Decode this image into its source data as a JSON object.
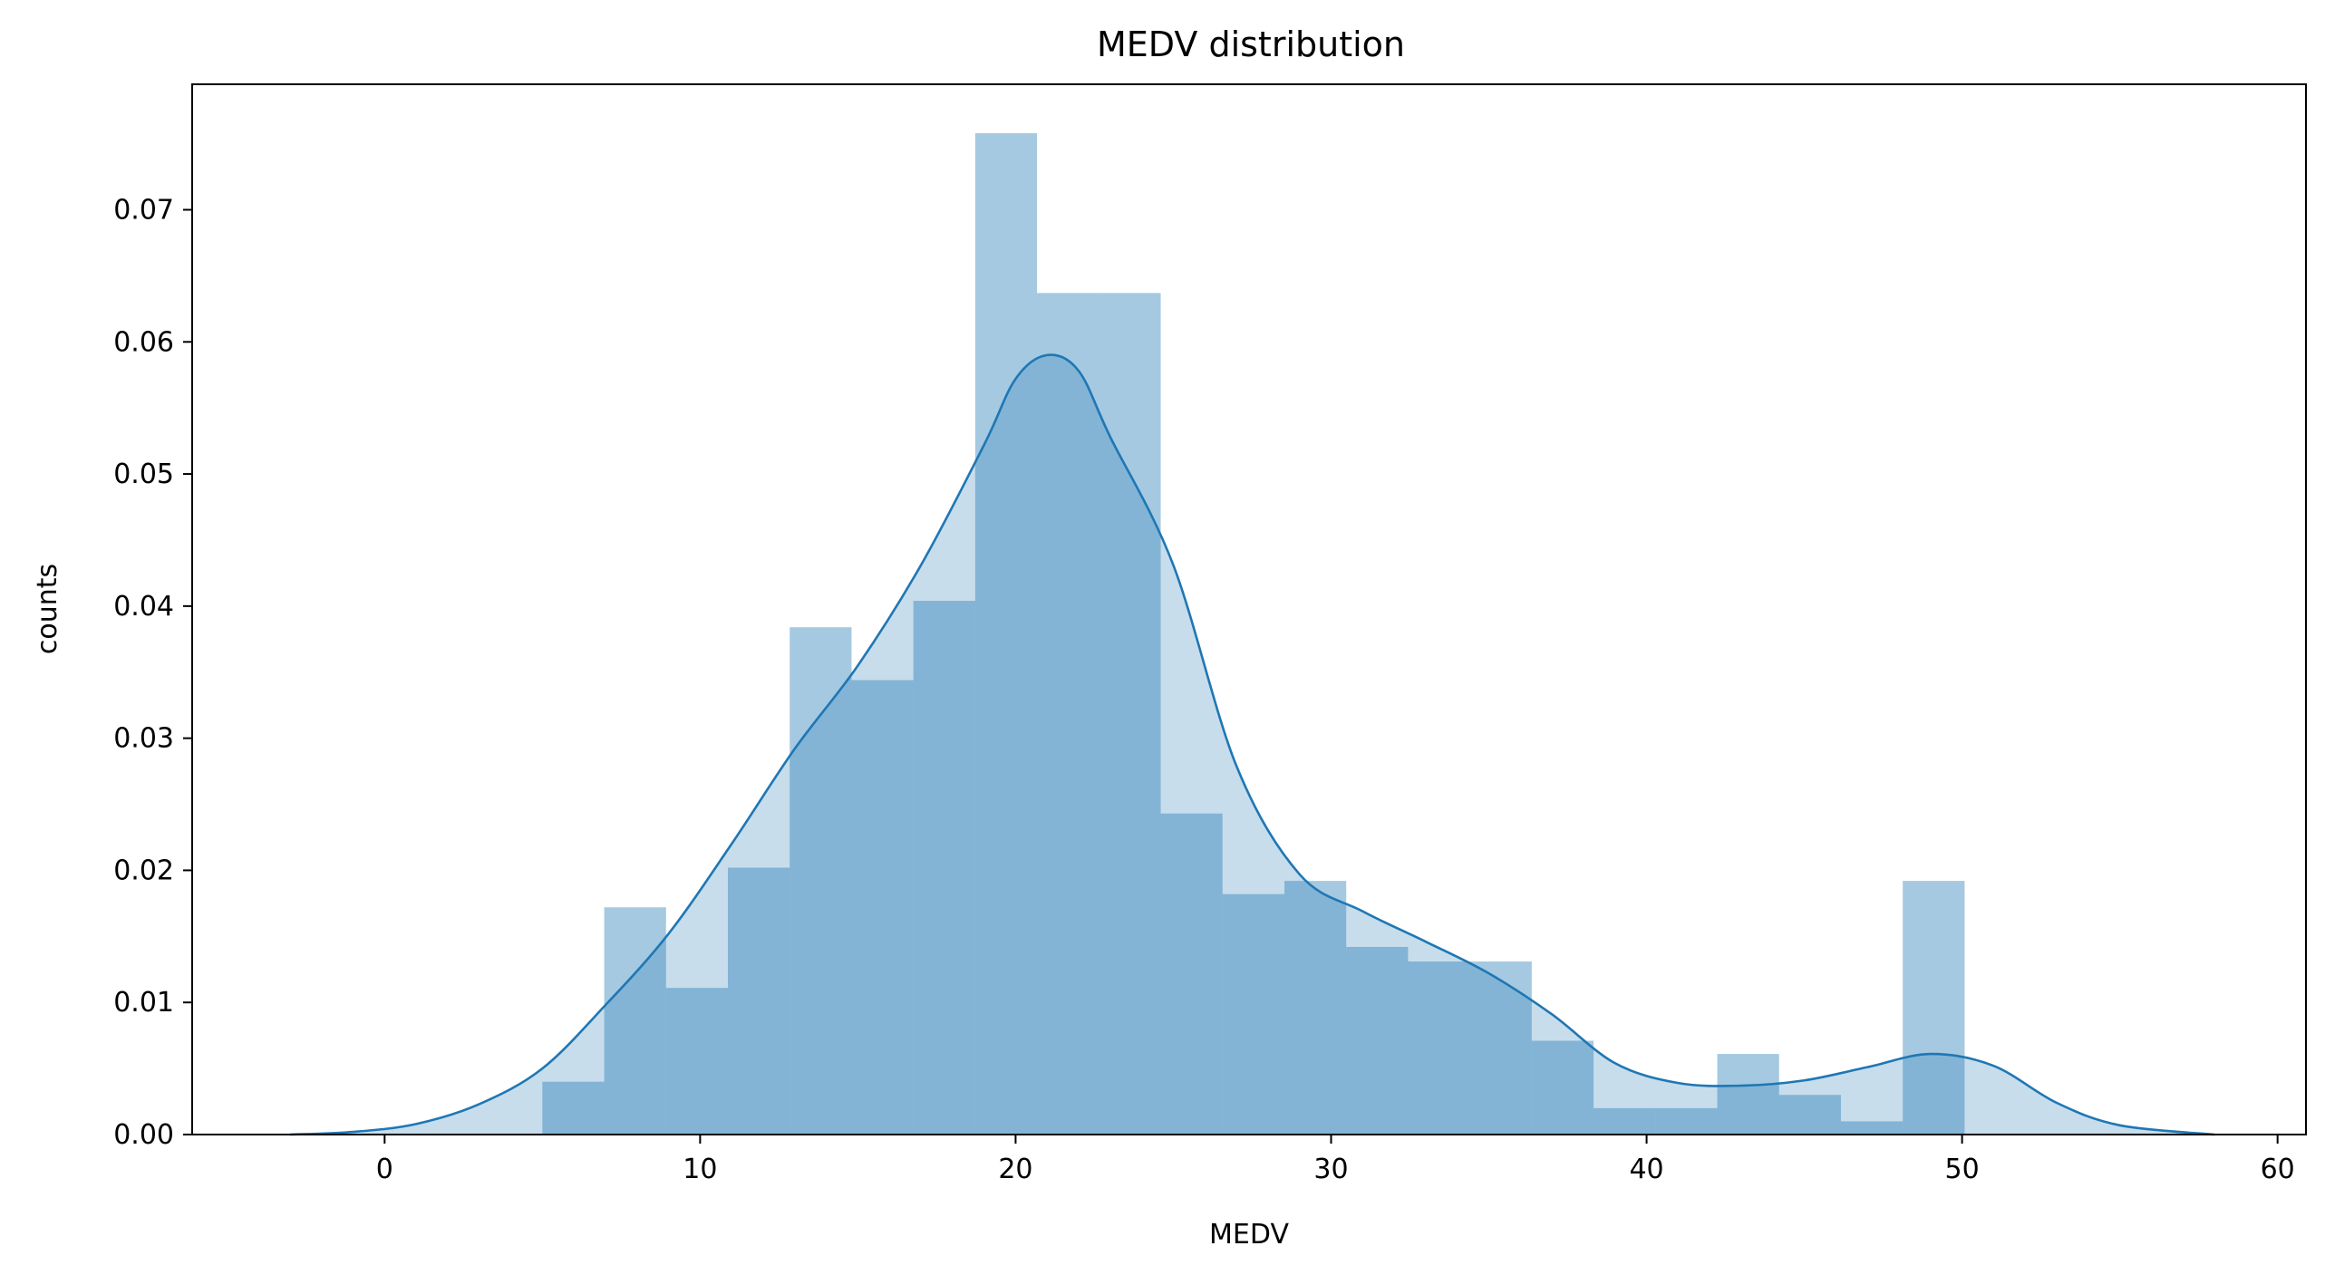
{
  "chart_data": {
    "type": "bar",
    "title": "MEDV distribution",
    "xlabel": "MEDV",
    "ylabel": "counts",
    "xlim": [
      -6.1,
      60.9
    ],
    "ylim": [
      0.0,
      0.0795
    ],
    "xticks": [
      0,
      10,
      20,
      30,
      40,
      50,
      60
    ],
    "yticks": [
      0.0,
      0.01,
      0.02,
      0.03,
      0.04,
      0.05,
      0.06,
      0.07
    ],
    "ytick_labels": [
      "0.00",
      "0.01",
      "0.02",
      "0.03",
      "0.04",
      "0.05",
      "0.06",
      "0.07"
    ],
    "grid": false,
    "histogram": {
      "bin_edges": [
        5.0,
        6.96,
        8.92,
        10.88,
        12.84,
        14.8,
        16.76,
        18.72,
        20.68,
        22.64,
        24.6,
        26.56,
        28.52,
        30.48,
        32.44,
        34.4,
        36.36,
        38.32,
        40.28,
        42.24,
        44.2,
        46.16,
        48.12,
        50.08
      ],
      "values": [
        0.004,
        0.0172,
        0.0111,
        0.0202,
        0.0384,
        0.0344,
        0.0404,
        0.0758,
        0.0637,
        0.0637,
        0.0243,
        0.0182,
        0.0192,
        0.0142,
        0.0131,
        0.0131,
        0.0071,
        0.002,
        0.002,
        0.0061,
        0.003,
        0.001,
        0.0192
      ],
      "color": "#1f77b4",
      "alpha": 0.4
    },
    "kde": {
      "x": [
        -3,
        -1,
        1,
        3,
        5,
        7,
        9,
        11,
        13,
        15,
        17,
        19,
        20,
        21,
        22,
        23,
        25,
        27,
        29,
        31,
        33,
        35,
        37,
        39,
        41,
        43,
        45,
        47,
        49,
        51,
        53,
        55,
        58
      ],
      "y": [
        0.0,
        0.0002,
        0.0008,
        0.0023,
        0.005,
        0.0098,
        0.0152,
        0.022,
        0.0292,
        0.0355,
        0.0431,
        0.0522,
        0.0572,
        0.059,
        0.0578,
        0.0528,
        0.0431,
        0.0279,
        0.0197,
        0.0169,
        0.0146,
        0.0122,
        0.0091,
        0.0054,
        0.0039,
        0.0037,
        0.0041,
        0.0051,
        0.0061,
        0.0052,
        0.0024,
        0.0007,
        0.0
      ],
      "color": "#1f77b4"
    }
  }
}
